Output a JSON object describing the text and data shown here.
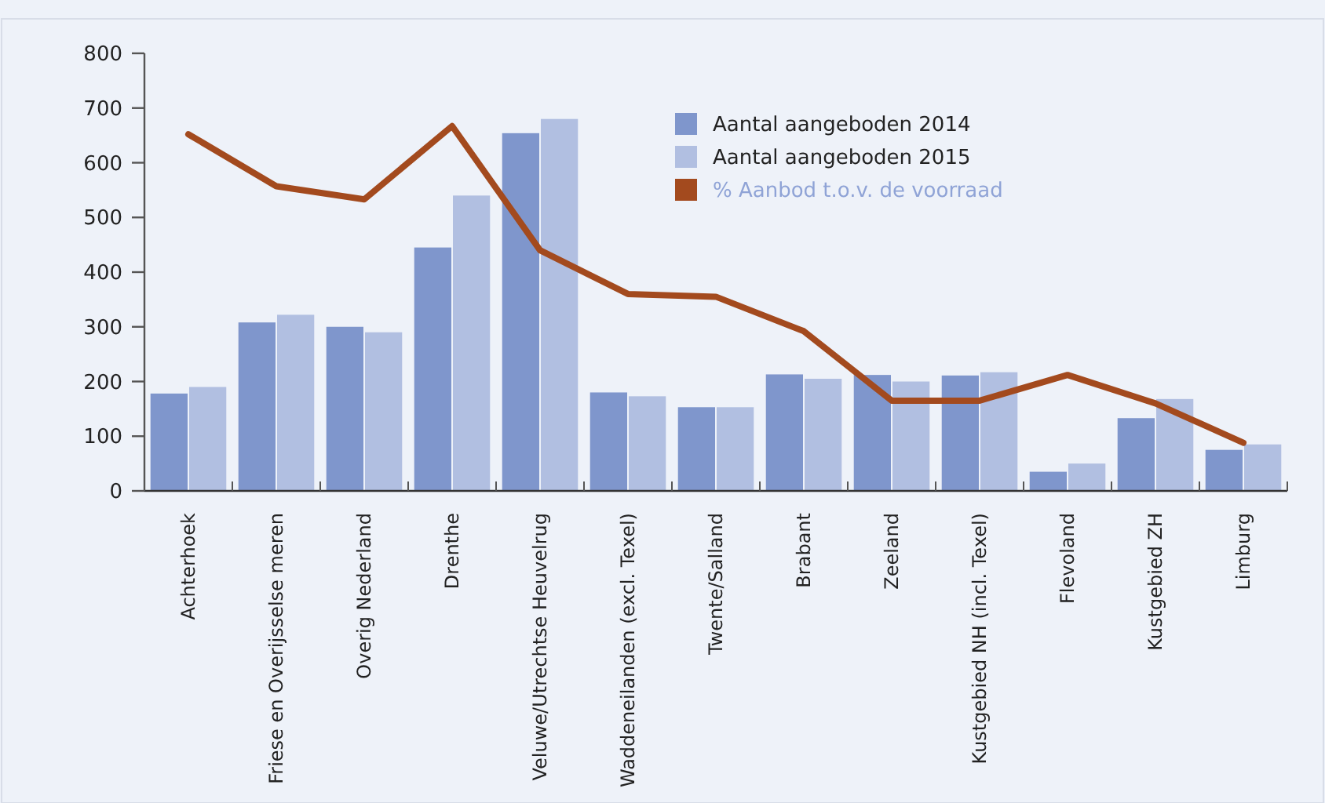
{
  "chart_data": {
    "type": "bar",
    "categories": [
      "Achterhoek",
      "Friese en Overijsselse meren",
      "Overig Nederland",
      "Drenthe",
      "Veluwe/Utrechtse Heuvelrug",
      "Waddeneilanden (excl. Texel)",
      "Twente/Salland",
      "Brabant",
      "Zeeland",
      "Kustgebied NH (incl. Texel)",
      "Flevoland",
      "Kustgebied ZH",
      "Limburg"
    ],
    "series": [
      {
        "name": "Aantal aangeboden 2014",
        "color": "#7f96cc",
        "values": [
          178,
          308,
          300,
          445,
          654,
          180,
          153,
          213,
          212,
          211,
          35,
          133,
          75
        ]
      },
      {
        "name": "Aantal aangeboden 2015",
        "color": "#b1bfe1",
        "values": [
          190,
          322,
          290,
          540,
          680,
          173,
          153,
          205,
          200,
          217,
          50,
          168,
          85
        ]
      },
      {
        "name": "% Aanbod t.o.v. de voorraad",
        "type": "line",
        "color": "#a34a1e",
        "values": [
          652,
          557,
          533,
          667,
          440,
          360,
          355,
          292,
          165,
          165,
          212,
          160,
          88
        ]
      }
    ],
    "ylim": [
      0,
      800
    ],
    "yticks": [
      0,
      100,
      200,
      300,
      400,
      500,
      600,
      700,
      800
    ],
    "grid": false,
    "legend": "top right"
  }
}
